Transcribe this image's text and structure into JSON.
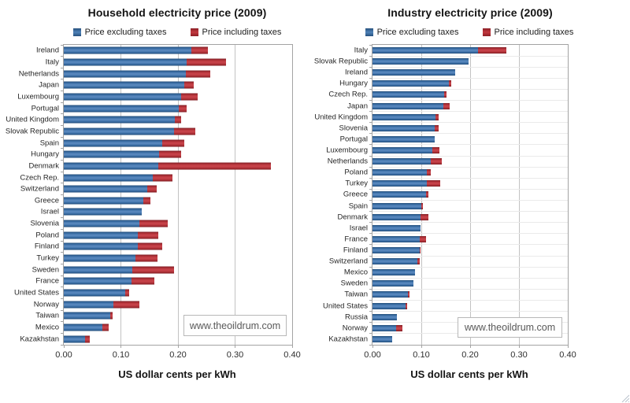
{
  "page": {
    "background": "#ffffff",
    "watermark": "www.theoildrum.com"
  },
  "colors": {
    "bar_excluding_taxes": "#31659c",
    "bar_including_taxes": "#be2b32",
    "gridline": "#c2c2c2",
    "plot_border": "#a3a3a3",
    "watermark_text": "#595959",
    "title_text": "#141414"
  },
  "chart_data": [
    {
      "type": "bar",
      "orientation": "horizontal",
      "title": "Household electricity price (2009)",
      "xlabel": "US dollar cents per kWh",
      "xlim": [
        0,
        0.4
      ],
      "xticks": [
        "0.00",
        "0.10",
        "0.20",
        "0.30",
        "0.40"
      ],
      "grid": "vertical",
      "row_gridlines": false,
      "legend_position": "top",
      "legend": [
        {
          "name": "Price excluding taxes",
          "color": "#31659c"
        },
        {
          "name": "Price including taxes",
          "color": "#be2b32"
        }
      ],
      "watermark": "www.theoildrum.com",
      "categories": [
        "Ireland",
        "Italy",
        "Netherlands",
        "Japan",
        "Luxembourg",
        "Portugal",
        "United Kingdom",
        "Slovak Republic",
        "Spain",
        "Hungary",
        "Denmark",
        "Czech Rep.",
        "Switzerland",
        "Greece",
        "Israel",
        "Slovenia",
        "Poland",
        "Finland",
        "Turkey",
        "Sweden",
        "France",
        "United States",
        "Norway",
        "Taiwan",
        "Mexico",
        "Kazakhstan"
      ],
      "series": [
        {
          "name": "Price excluding taxes",
          "values": [
            0.224,
            0.215,
            0.214,
            0.211,
            0.205,
            0.202,
            0.194,
            0.193,
            0.172,
            0.167,
            0.166,
            0.156,
            0.146,
            0.139,
            0.137,
            0.133,
            0.13,
            0.129,
            0.126,
            0.12,
            0.118,
            0.108,
            0.087,
            0.082,
            0.067,
            0.037
          ]
        },
        {
          "name": "Price including taxes",
          "values": [
            0.253,
            0.284,
            0.257,
            0.228,
            0.234,
            0.215,
            0.206,
            0.231,
            0.211,
            0.206,
            0.363,
            0.191,
            0.163,
            0.152,
            null,
            0.182,
            0.166,
            0.172,
            0.164,
            0.193,
            0.159,
            0.114,
            0.132,
            0.086,
            0.078,
            0.046
          ]
        }
      ]
    },
    {
      "type": "bar",
      "orientation": "horizontal",
      "title": "Industry electricity price (2009)",
      "xlabel": "US dollar cents per kWh",
      "xlim": [
        0,
        0.4
      ],
      "xticks": [
        "0.00",
        "0.10",
        "0.20",
        "0.30",
        "0.40"
      ],
      "grid": "vertical",
      "row_gridlines": true,
      "legend_position": "top",
      "legend": [
        {
          "name": "Price excluding taxes",
          "color": "#31659c"
        },
        {
          "name": "Price including taxes",
          "color": "#be2b32"
        }
      ],
      "watermark": "www.theoildrum.com",
      "categories": [
        "Italy",
        "Slovak Republic",
        "Ireland",
        "Hungary",
        "Czech Rep.",
        "Japan",
        "United Kingdom",
        "Slovenia",
        "Portugal",
        "Luxembourg",
        "Netherlands",
        "Poland",
        "Turkey",
        "Greece",
        "Spain",
        "Denmark",
        "Israel",
        "France",
        "Finland",
        "Switzerland",
        "Mexico",
        "Sweden",
        "Taiwan",
        "United States",
        "Russia",
        "Norway",
        "Kazakhstan"
      ],
      "series": [
        {
          "name": "Price excluding taxes",
          "values": [
            0.216,
            0.196,
            0.17,
            0.157,
            0.147,
            0.145,
            0.129,
            0.128,
            0.128,
            0.123,
            0.12,
            0.112,
            0.112,
            0.11,
            0.1,
            0.099,
            0.098,
            0.097,
            0.096,
            0.092,
            0.087,
            0.084,
            0.072,
            0.067,
            0.05,
            0.048,
            0.04
          ]
        },
        {
          "name": "Price including taxes",
          "values": [
            0.275,
            null,
            null,
            0.162,
            0.151,
            0.158,
            0.136,
            0.135,
            null,
            0.137,
            0.142,
            0.12,
            0.139,
            0.115,
            0.104,
            0.114,
            null,
            0.11,
            0.099,
            0.096,
            null,
            null,
            0.076,
            0.071,
            null,
            0.061,
            null
          ]
        }
      ]
    }
  ]
}
